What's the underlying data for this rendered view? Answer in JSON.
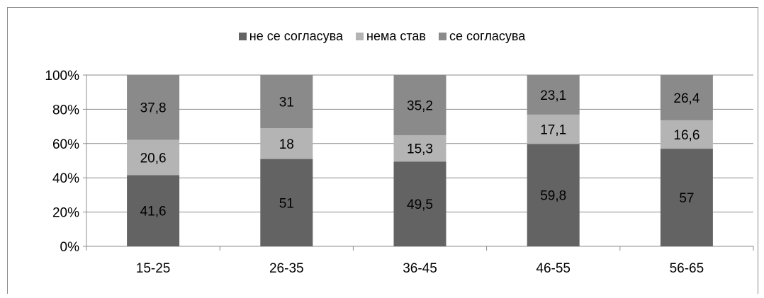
{
  "chart_data": {
    "type": "bar",
    "stacked": true,
    "normalized": true,
    "categories": [
      "15-25",
      "26-35",
      "36-45",
      "46-55",
      "56-65"
    ],
    "series": [
      {
        "name": "не се согласува",
        "color": "#636363",
        "values": [
          41.6,
          51,
          49.5,
          59.8,
          57
        ],
        "labels": [
          "41,6",
          "51",
          "49,5",
          "59,8",
          "57"
        ]
      },
      {
        "name": "нема став",
        "color": "#b4b4b4",
        "values": [
          20.6,
          18,
          15.3,
          17.1,
          16.6
        ],
        "labels": [
          "20,6",
          "18",
          "15,3",
          "17,1",
          "16,6"
        ]
      },
      {
        "name": "се согласува",
        "color": "#8a8a8a",
        "values": [
          37.8,
          31,
          35.2,
          23.1,
          26.4
        ],
        "labels": [
          "37,8",
          "31",
          "35,2",
          "23,1",
          "26,4"
        ]
      }
    ],
    "yticks": [
      "0%",
      "20%",
      "40%",
      "60%",
      "80%",
      "100%"
    ],
    "ylim": [
      0,
      100
    ],
    "grid": true,
    "legend_position": "top"
  }
}
